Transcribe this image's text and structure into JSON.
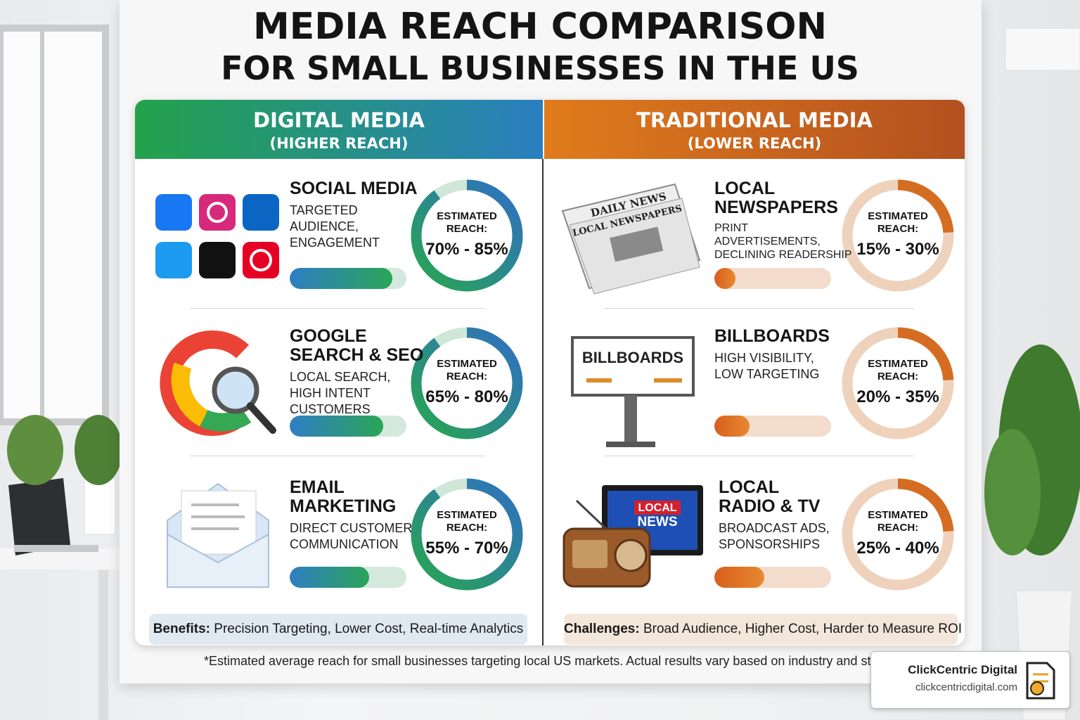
{
  "header": {
    "title": [
      "MEDIA REACH COMPARISON",
      "FOR SMALL BUSINESSES IN THE US"
    ]
  },
  "columns": [
    {
      "title": "DIGITAL MEDIA",
      "subtitle": "(HIGHER REACH)",
      "items": [
        {
          "title": [
            "SOCIAL MEDIA"
          ],
          "description": [
            "TARGETED",
            "AUDIENCE,",
            "ENGAGEMENT"
          ],
          "reach_label": [
            "ESTIMATED",
            "REACH:"
          ],
          "reach": "70% - 85%"
        },
        {
          "title": [
            "GOOGLE",
            "SEARCH & SEO"
          ],
          "description": [
            "LOCAL SEARCH,",
            "HIGH INTENT",
            "CUSTOMERS"
          ],
          "reach_label": [
            "ESTIMATED",
            "REACH:"
          ],
          "reach": "65% - 80%"
        },
        {
          "title": [
            "EMAIL",
            "MARKETING"
          ],
          "description": [
            "DIRECT CUSTOMER",
            "COMMUNICATION"
          ],
          "reach_label": [
            "ESTIMATED",
            "REACH:"
          ],
          "reach": "55% - 70%"
        }
      ],
      "note_label": "Benefits:",
      "note": "Precision Targeting, Lower Cost, Real-time Analytics"
    },
    {
      "title": "TRADITIONAL MEDIA",
      "subtitle": "(LOWER REACH)",
      "items": [
        {
          "title": [
            "LOCAL",
            "NEWSPAPERS"
          ],
          "description": [
            "PRINT",
            "ADVERTISEMENTS,",
            "DECLINING READERSHIP"
          ],
          "reach_label": [
            "ESTIMATED",
            "REACH:"
          ],
          "reach": "15% - 30%"
        },
        {
          "title": [
            "BILLBOARDS"
          ],
          "description": [
            "HIGH VISIBILITY,",
            "LOW TARGETING"
          ],
          "reach_label": [
            "ESTIMATED",
            "REACH:"
          ],
          "reach": "20% - 35%"
        },
        {
          "title": [
            "LOCAL",
            "RADIO & TV"
          ],
          "description": [
            "BROADCAST ADS,",
            "SPONSORSHIPS"
          ],
          "reach_label": [
            "ESTIMATED",
            "REACH:"
          ],
          "reach": "25% - 40%"
        }
      ],
      "note_label": "Challenges:",
      "note": "Broad Audience, Higher Cost, Harder to Measure ROI"
    }
  ],
  "icons": {
    "newspaper": [
      "DAILY NEWS",
      "LOCAL NEWSPAPERS"
    ],
    "billboard": "BILLBOARDS",
    "tv": [
      "LOCAL",
      "NEWS"
    ]
  },
  "footnote": "*Estimated average reach for small businesses targeting local US markets. Actual results vary based on industry and stra",
  "brand": {
    "name": "ClickCentric Digital",
    "url": "clickcentricdigital.com"
  }
}
